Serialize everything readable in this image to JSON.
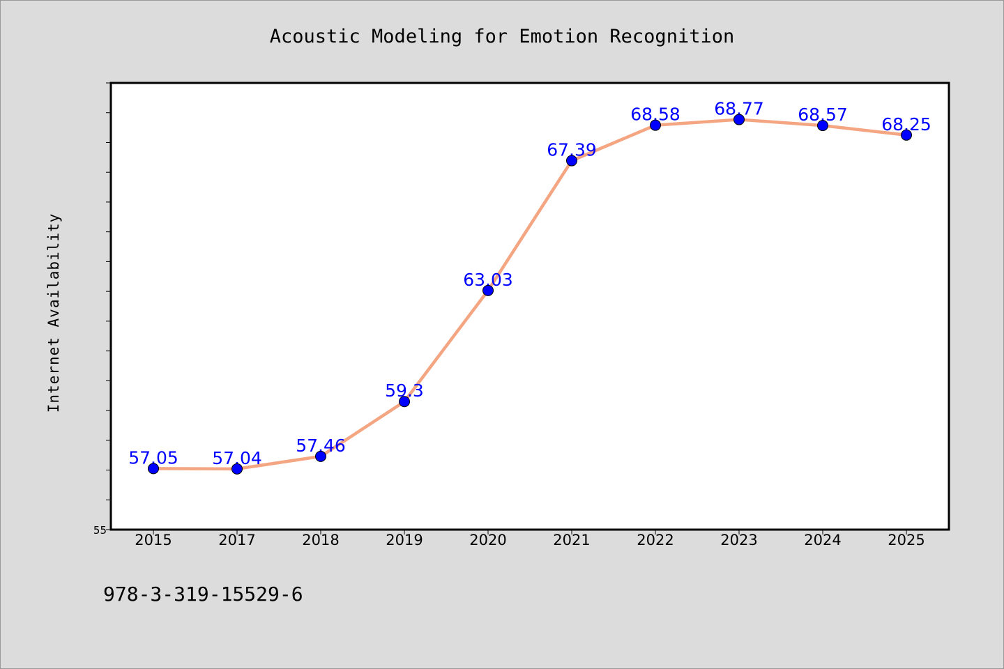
{
  "chart_data": {
    "type": "line",
    "title": "Acoustic Modeling for Emotion Recognition",
    "xlabel": "",
    "ylabel": "Internet Availability",
    "categories": [
      "2015",
      "2017",
      "2018",
      "2019",
      "2020",
      "2021",
      "2022",
      "2023",
      "2024",
      "2025"
    ],
    "series": [
      {
        "values": [
          57.05,
          57.04,
          57.46,
          59.3,
          63.03,
          67.39,
          68.58,
          68.77,
          68.57,
          68.25
        ],
        "labels": [
          "57.05",
          "57.04",
          "57.46",
          "59.3",
          "63.03",
          "67.39",
          "68.58",
          "68.77",
          "68.57",
          "68.25"
        ]
      }
    ],
    "ylim": [
      55,
      70
    ],
    "yticks_labeled": [
      "55"
    ],
    "grid": false,
    "legend": "none",
    "colors": {
      "line": "#f4a582",
      "marker": "#0000ff",
      "data_label": "#0000ff",
      "background": "#dcdcdc",
      "plot_background": "#ffffff"
    }
  },
  "annotation": "978-3-319-15529-6"
}
